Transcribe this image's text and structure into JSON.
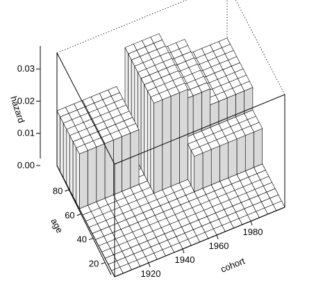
{
  "chart_data": {
    "type": "surface3d",
    "title": "",
    "xlabel": "cohort",
    "ylabel": "age",
    "zlabel": "hazard",
    "xlim": [
      1900,
      2000
    ],
    "ylim": [
      10,
      100
    ],
    "zlim": [
      0,
      0.035
    ],
    "x_ticks": [
      {
        "value": 1920,
        "label": "1920"
      },
      {
        "value": 1940,
        "label": "1940"
      },
      {
        "value": 1960,
        "label": "1960"
      },
      {
        "value": 1980,
        "label": "1980"
      }
    ],
    "y_ticks": [
      {
        "value": 20,
        "label": "20"
      },
      {
        "value": 40,
        "label": "40"
      },
      {
        "value": 60,
        "label": "60"
      },
      {
        "value": 80,
        "label": "80"
      }
    ],
    "z_ticks": [
      {
        "value": 0.0,
        "label": "0.00"
      },
      {
        "value": 0.01,
        "label": "0.01"
      },
      {
        "value": 0.02,
        "label": "0.02"
      },
      {
        "value": 0.03,
        "label": "0.03"
      }
    ],
    "surface": {
      "x_step": 5,
      "y_step": 5,
      "regions": [
        {
          "x": [
            1900,
            1935
          ],
          "y": [
            65,
            100
          ],
          "z": 0.017
        },
        {
          "x": [
            1940,
            1960
          ],
          "y": [
            55,
            100
          ],
          "z": 0.028
        },
        {
          "x": [
            1960,
            1975
          ],
          "y": [
            60,
            100
          ],
          "z": 0.023
        },
        {
          "x": [
            1975,
            2000
          ],
          "y": [
            60,
            100
          ],
          "z": 0.018
        },
        {
          "x": [
            1960,
            2000
          ],
          "y": [
            45,
            60
          ],
          "z": 0.011
        },
        {
          "x": [
            1950,
            1975
          ],
          "y": [
            10,
            45
          ],
          "z": 0.0
        },
        {
          "x": [
            1975,
            2000
          ],
          "y": [
            10,
            45
          ],
          "z": 0.0
        }
      ],
      "default_z": 0.0
    }
  }
}
